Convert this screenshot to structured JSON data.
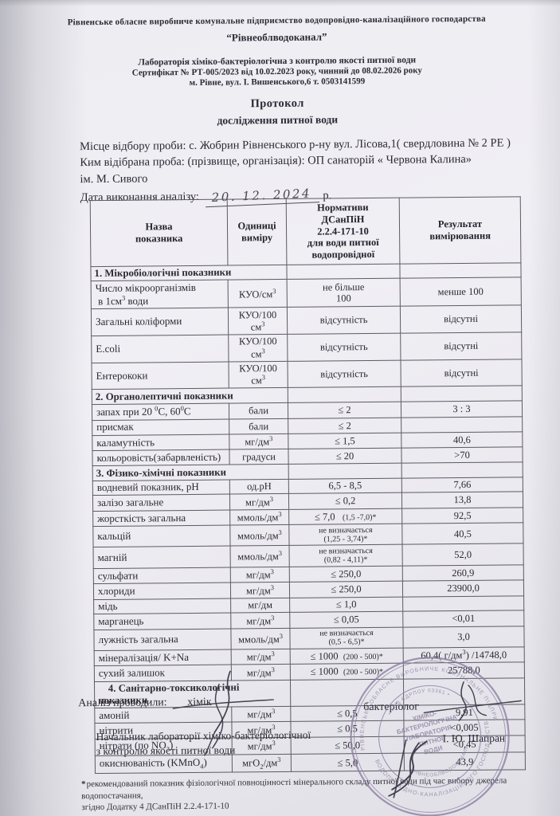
{
  "header": {
    "org_line": "Рівненське обласне виробниче комунальне підприємство водопровідно-каналізаційного господарства",
    "org_name": "“Рівнеоблводоканал”",
    "lab_line": "Лабораторія хіміко-бактеріологічна з контролю якості питної води",
    "cert_line": "Сертифікат № РТ-005/2023 від 10.02.2023 року, чинний до 08.02.2026 року",
    "address_line": "м. Рівне, вул. І. Вишенського,6  т. 0503141599",
    "title": "Протокол",
    "subtitle": "дослідження питної води"
  },
  "sample_info": {
    "place_line": "Місце відбору проби: с. Жобрин Рівненського р-ну вул. Лісова,1( свердловина № 2 РЕ )",
    "sampled_by_line": "Ким відібрана проба: (прізвище, організація): ОП санаторій « Червона Калина»",
    "sampled_by_line2": "ім. М. Сивого",
    "date_label": "Дата виконання аналізу:",
    "date_value": "20. 12. 2024",
    "date_suffix": "р."
  },
  "table": {
    "columns": [
      "Назва<br>показника",
      "Одиниці<br>виміру",
      "Нормативи<br>ДСанПіН<br>2.2.4-171-10<br>для води питної<br>водопровідної",
      "Результат<br>вимірювання"
    ],
    "sections": [
      {
        "title": "1. Мікробіологічні показники",
        "rows": [
          {
            "name": "Число мікроорганізмів<br>&nbsp;в 1см<sup>3</sup> води",
            "unit": "КУО/см<sup>3</sup>",
            "norm": "не більше<br>100",
            "result": "менше 100"
          },
          {
            "name": "Загальні коліформи",
            "unit": "КУО/100 см<sup>3</sup>",
            "norm": "відсутність",
            "result": "відсутні"
          },
          {
            "name": "E.coli",
            "unit": "КУО/100 см<sup>3</sup>",
            "norm": "відсутність",
            "result": "відсутні"
          },
          {
            "name": "Ентерококи",
            "unit": "КУО/100 см<sup>3</sup>",
            "norm": "відсутність",
            "result": "відсутні"
          }
        ]
      },
      {
        "title": "2. Органолептичні показники",
        "rows": [
          {
            "name": "запах при 20 <sup>0</sup>С, 60<sup>0</sup>С",
            "unit": "бали",
            "norm": "≤ 2",
            "result": "3 : 3"
          },
          {
            "name": "присмак",
            "unit": "бали",
            "norm": "≤ 2",
            "result": ""
          },
          {
            "name": "каламутність",
            "unit": "мг/дм<sup>3</sup>",
            "norm": "≤ 1,5",
            "result": "40,6"
          },
          {
            "name": "кольоровість(забарвленість)",
            "unit": "градуси",
            "norm": "≤ 20",
            "result": "&gt;70"
          }
        ]
      },
      {
        "title": "3. Фізико-хімічні показники",
        "rows": [
          {
            "name": "водневий показник, pH",
            "unit": "од.pH",
            "norm": "6,5 - 8,5",
            "result": "7,66"
          },
          {
            "name": "залізо загальне",
            "unit": "мг/дм<sup>3</sup>",
            "norm": "≤ 0,2",
            "result": "13,8"
          },
          {
            "name": "жорсткість загальна",
            "unit": "ммоль/дм<sup>3</sup>",
            "norm": "≤ 7,0&nbsp;&nbsp;&nbsp;<span class=\"sm\">(1,5 -7,0)*</span>",
            "result": "92,5"
          },
          {
            "name": "кальцій",
            "unit": "ммоль/дм<sup>3</sup>",
            "norm": "<span class=\"sm\">не визначається<br>(1,25 - 3,74)*</span>",
            "result": "40,5"
          },
          {
            "name": "магній",
            "unit": "ммоль/дм<sup>3</sup>",
            "norm": "<span class=\"sm\">не визначається<br>(0,82 - 4,11)*</span>",
            "result": "52,0"
          },
          {
            "name": "сульфати",
            "unit": "мг/дм<sup>3</sup>",
            "norm": "≤ 250,0",
            "result": "260,9"
          },
          {
            "name": "хлориди",
            "unit": "мг/дм<sup>3</sup>",
            "norm": "≤ 250,0",
            "result": "23900,0"
          },
          {
            "name": "мідь",
            "unit": "мг/дм",
            "norm": "≤ 1,0",
            "result": ""
          },
          {
            "name": "марганець",
            "unit": "мг/дм<sup>3</sup>",
            "norm": "≤ 0,05",
            "result": "&lt;0,01"
          },
          {
            "name": "лужність загальна",
            "unit": "ммоль/дм<sup>3</sup>",
            "norm": "<span class=\"sm\">не визначається<br>(0,5 - 6,5)*</span>",
            "result": "3,0"
          },
          {
            "name": "мінералізація/ K+Na",
            "unit": "мг/дм<sup>3</sup>",
            "norm": "≤ 1000&nbsp;&nbsp;<span class=\"sm\">(200 - 500)*</span>",
            "result": "60,4( г/дм<sup>3</sup>) /14748,0"
          },
          {
            "name": "сухий залишок",
            "unit": "мг/дм<sup>3</sup>",
            "norm": "≤ 1000&nbsp;&nbsp;<span class=\"sm\">(200 - 500)*</span>",
            "result": "25788,0"
          }
        ]
      },
      {
        "title": "&nbsp;&nbsp;&nbsp;&nbsp;4. Санітарно-токсикологічні показники",
        "rows": [
          {
            "name": "амоній",
            "unit": "мг/дм<sup>3</sup>",
            "norm": "≤ 0,5",
            "result": "9,91"
          },
          {
            "name": "нітрити",
            "unit": "мг/дм<sup>3</sup>",
            "norm": "≤ 0,5",
            "result": "&lt;0,005"
          },
          {
            "name": "нітрати (по NO<sub>3</sub>)",
            "unit": "мг/дм<sup>3</sup>",
            "norm": "≤ 50,0",
            "result": "&lt;0,45"
          },
          {
            "name": "окиснюваність (KMnO<sub>4</sub>)",
            "unit": "мгО<sub>2</sub>/дм<sup>3</sup>",
            "norm": "≤ 5,0",
            "result": "43,9"
          }
        ]
      }
    ]
  },
  "footnote": {
    "marker": "*",
    "line1": "рекомендований показник фізіологічної повноцінності мінерального складу питної води під час вибору джерела водопостачання,",
    "line2": "згідно Додатку 4    ДСанПіН 2.2.4-171-10"
  },
  "signatures": {
    "performed_label": "Аналіз проводили:",
    "chemist": "хімік",
    "bacteriologist": "бактеріолог",
    "head_line1": "Начальник лабораторії хіміко-бактеріологічної",
    "head_line2": "з контролю якості питної води",
    "head_name": "І. Ю. Шапран"
  },
  "stamp": {
    "ring_top": "РІВНЕНСЬКЕ ОБЛАСНЕ ВИРОБНИЧЕ КОМУНАЛЬНЕ ПІДПРИЄМСТВО",
    "ring_bottom": "ВОДОПРОВІДНО-КАНАЛІЗАЦІЙНОГО ГОСПОДАРСТВА",
    "ring_inner_top": "• КОД ЄДРПОУ 03361 •",
    "ring_inner_bottom": "«РІВНЕОБЛВОДОКАНАЛ»",
    "center_lines": [
      "ХІМІКО-",
      "БАКТЕРІОЛОГІЧНА",
      "ЛАБОРАТОРІЯ",
      "ПИТНОЇ",
      "ВОДИ"
    ]
  }
}
